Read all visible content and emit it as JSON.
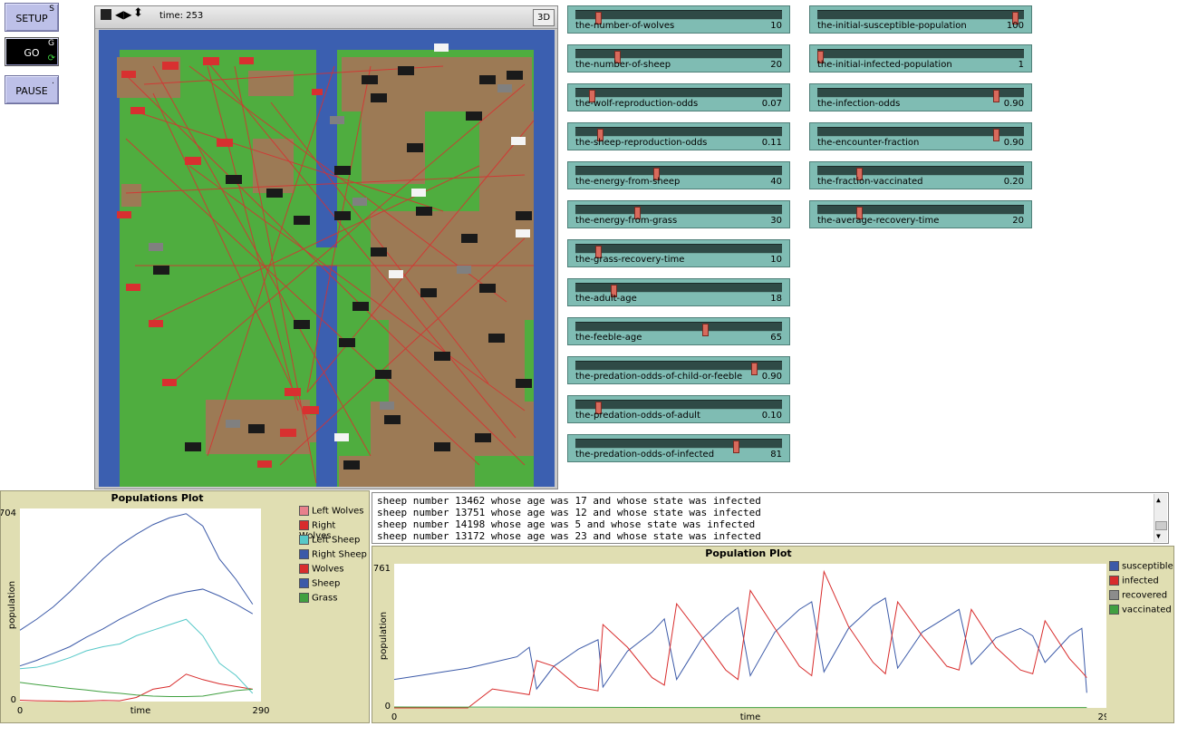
{
  "buttons": {
    "setup": {
      "label": "SETUP",
      "key": "S"
    },
    "go": {
      "label": "GO",
      "key": "G"
    },
    "pause": {
      "label": "PAUSE",
      "key": "."
    }
  },
  "view": {
    "time_label": "time: 253",
    "btn_3d": "3D"
  },
  "sliders_left": [
    {
      "name": "the-number-of-wolves",
      "value": "10",
      "fraction": 0.1
    },
    {
      "name": "the-number-of-sheep",
      "value": "20",
      "fraction": 0.2
    },
    {
      "name": "the-wolf-reproduction-odds",
      "value": "0.07",
      "fraction": 0.07
    },
    {
      "name": "the-sheep-reproduction-odds",
      "value": "0.11",
      "fraction": 0.11
    },
    {
      "name": "the-energy-from-sheep",
      "value": "40",
      "fraction": 0.4
    },
    {
      "name": "the-energy-from-grass",
      "value": "30",
      "fraction": 0.3
    },
    {
      "name": "the-grass-recovery-time",
      "value": "10",
      "fraction": 0.1
    },
    {
      "name": "the-adult-age",
      "value": "18",
      "fraction": 0.18
    },
    {
      "name": "the-feeble-age",
      "value": "65",
      "fraction": 0.65
    },
    {
      "name": "the-predation-odds-of-child-or-feeble",
      "value": "0.90",
      "fraction": 0.9
    },
    {
      "name": "the-predation-odds-of-adult",
      "value": "0.10",
      "fraction": 0.1
    },
    {
      "name": "the-predation-odds-of-infected",
      "value": "81",
      "fraction": 0.81
    }
  ],
  "sliders_right": [
    {
      "name": "the-initial-susceptible-population",
      "value": "100",
      "fraction": 1.0
    },
    {
      "name": "the-initial-infected-population",
      "value": "1",
      "fraction": 0.0
    },
    {
      "name": "the-infection-odds",
      "value": "0.90",
      "fraction": 0.9
    },
    {
      "name": "the-encounter-fraction",
      "value": "0.90",
      "fraction": 0.9
    },
    {
      "name": "the-fraction-vaccinated",
      "value": "0.20",
      "fraction": 0.2
    },
    {
      "name": "the-average-recovery-time",
      "value": "20",
      "fraction": 0.2
    }
  ],
  "output_lines": [
    "sheep number 13462 whose age was 17 and whose state was infected",
    "sheep number 13751 whose age was 12 and whose state was infected",
    "sheep number 14198 whose age was 5 and whose state was infected",
    "sheep number 13172 whose age was 23 and whose state was infected"
  ],
  "chart_data": [
    {
      "type": "line",
      "title": "Populations Plot",
      "xlabel": "time",
      "ylabel": "population",
      "xlim": [
        0,
        290
      ],
      "ylim": [
        0,
        704
      ],
      "x_tick_labels": [
        "0",
        "290"
      ],
      "y_tick_labels": [
        "0",
        "704"
      ],
      "legend": "right",
      "series": [
        {
          "name": "Left Wolves",
          "color": "#e8808c",
          "x": [],
          "values": []
        },
        {
          "name": "Right Wolves",
          "color": "#d82c2c",
          "x": [
            0,
            20,
            40,
            60,
            80,
            100,
            120,
            140,
            160,
            180,
            200,
            220,
            240,
            260,
            280
          ],
          "values": [
            5,
            3,
            2,
            1,
            2,
            4,
            3,
            15,
            45,
            55,
            100,
            80,
            65,
            55,
            45
          ]
        },
        {
          "name": "Left Sheep",
          "color": "#56c8c8",
          "x": [
            0,
            20,
            40,
            60,
            80,
            100,
            120,
            140,
            160,
            180,
            200,
            220,
            240,
            260,
            280
          ],
          "values": [
            120,
            125,
            140,
            160,
            185,
            200,
            210,
            240,
            260,
            280,
            300,
            240,
            140,
            95,
            30
          ]
        },
        {
          "name": "Right Sheep",
          "color": "#3c5aa8",
          "x": [
            0,
            20,
            40,
            60,
            80,
            100,
            120,
            140,
            160,
            180,
            200,
            220,
            240,
            260,
            280
          ],
          "values": [
            130,
            150,
            175,
            200,
            235,
            265,
            300,
            330,
            360,
            385,
            400,
            410,
            385,
            355,
            320
          ]
        },
        {
          "name": "Wolves",
          "color": "#d82c2c",
          "x": [],
          "values": []
        },
        {
          "name": "Sheep",
          "color": "#3c5aa8",
          "x": [
            0,
            20,
            40,
            60,
            80,
            100,
            120,
            140,
            160,
            180,
            200,
            220,
            240,
            260,
            280
          ],
          "values": [
            260,
            300,
            345,
            400,
            460,
            520,
            570,
            610,
            645,
            670,
            685,
            640,
            520,
            445,
            355
          ]
        },
        {
          "name": "Grass",
          "color": "#40a040",
          "x": [
            0,
            20,
            40,
            60,
            80,
            100,
            120,
            140,
            160,
            180,
            200,
            220,
            240,
            260,
            280
          ],
          "values": [
            70,
            62,
            55,
            48,
            42,
            35,
            30,
            24,
            20,
            18,
            18,
            20,
            30,
            40,
            45
          ]
        }
      ]
    },
    {
      "type": "line",
      "title": "Population Plot",
      "xlabel": "time",
      "ylabel": "population",
      "xlim": [
        0,
        290
      ],
      "ylim": [
        0,
        761
      ],
      "x_tick_labels": [
        "0",
        "290"
      ],
      "y_tick_labels": [
        "0",
        "761"
      ],
      "legend": "right",
      "series": [
        {
          "name": "susceptible",
          "color": "#3c5aa8",
          "x": [
            0,
            10,
            20,
            30,
            40,
            50,
            55,
            58,
            65,
            75,
            83,
            85,
            95,
            105,
            110,
            115,
            125,
            135,
            140,
            145,
            155,
            165,
            170,
            175,
            185,
            195,
            200,
            205,
            215,
            225,
            230,
            235,
            245,
            255,
            260,
            265,
            275,
            280,
            282
          ],
          "values": [
            150,
            170,
            190,
            210,
            240,
            270,
            320,
            100,
            220,
            310,
            360,
            110,
            300,
            400,
            470,
            150,
            360,
            480,
            530,
            170,
            400,
            520,
            560,
            190,
            420,
            540,
            580,
            210,
            400,
            480,
            520,
            230,
            370,
            420,
            380,
            240,
            380,
            420,
            80
          ]
        },
        {
          "name": "infected",
          "color": "#d82c2c",
          "x": [
            0,
            20,
            30,
            40,
            50,
            55,
            58,
            65,
            75,
            83,
            85,
            95,
            105,
            110,
            115,
            125,
            135,
            140,
            145,
            155,
            165,
            170,
            175,
            185,
            195,
            200,
            205,
            215,
            225,
            230,
            235,
            245,
            255,
            260,
            265,
            275,
            280,
            282
          ],
          "values": [
            0,
            0,
            0,
            100,
            80,
            70,
            250,
            220,
            110,
            90,
            440,
            320,
            160,
            120,
            550,
            380,
            200,
            150,
            620,
            420,
            220,
            170,
            720,
            430,
            240,
            180,
            560,
            380,
            220,
            200,
            520,
            320,
            200,
            180,
            460,
            260,
            190,
            160
          ]
        },
        {
          "name": "recovered",
          "color": "#8c8c8c",
          "x": [],
          "values": []
        },
        {
          "name": "vaccinated",
          "color": "#40a040",
          "x": [
            0,
            40,
            80,
            120,
            160,
            200,
            240,
            282
          ],
          "values": [
            5,
            4,
            3,
            2,
            2,
            2,
            2,
            2
          ]
        }
      ]
    }
  ]
}
